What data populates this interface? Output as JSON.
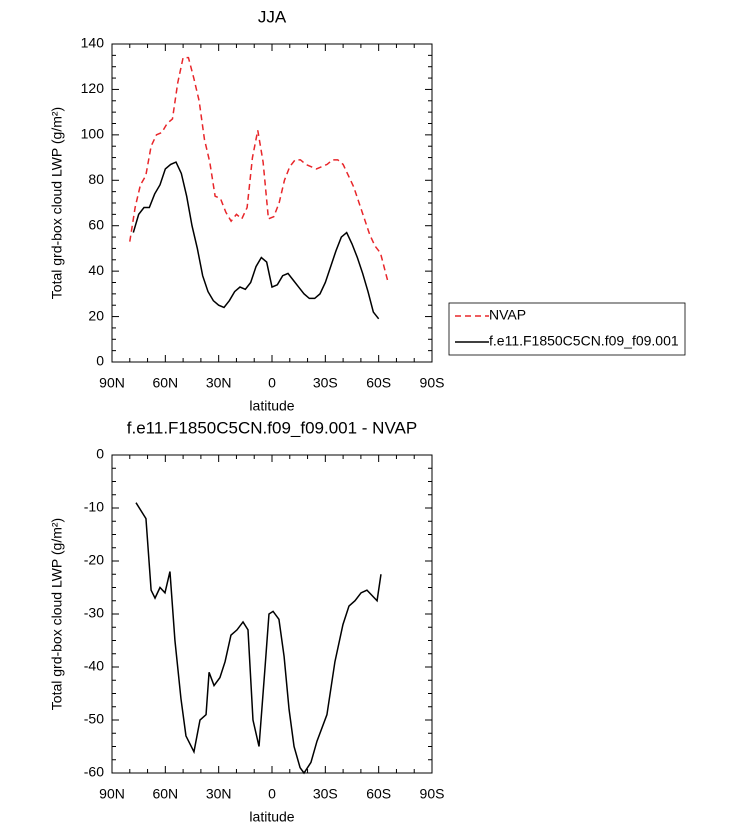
{
  "chart_data": [
    {
      "type": "line",
      "title": "JJA",
      "xlabel": "latitude",
      "ylabel": "Total grd-box cloud LWP (g/m²)",
      "xlim": [
        90,
        -90
      ],
      "xticks": [
        {
          "value": 90,
          "label": "90N"
        },
        {
          "value": 60,
          "label": "60N"
        },
        {
          "value": 30,
          "label": "30N"
        },
        0,
        {
          "value": -30,
          "label": "30S"
        },
        {
          "value": -60,
          "label": "60S"
        },
        {
          "value": -90,
          "label": "90S"
        }
      ],
      "ylim": [
        0,
        140
      ],
      "yticks": [
        0,
        20,
        40,
        60,
        80,
        100,
        120,
        140
      ],
      "legend": "right",
      "series": [
        {
          "name": "NVAP",
          "color": "#e8262a",
          "line_style": "dashed",
          "x": [
            80,
            77,
            74,
            71,
            68,
            65,
            62,
            59,
            56,
            53,
            50,
            47,
            44,
            41,
            38,
            35,
            32,
            29,
            26,
            23,
            20,
            17,
            14,
            11,
            8,
            5,
            2,
            -1,
            -4,
            -7,
            -10,
            -13,
            -16,
            -19,
            -22,
            -25,
            -28,
            -31,
            -34,
            -37,
            -40,
            -43,
            -46,
            -49,
            -52,
            -55,
            -58,
            -61,
            -65
          ],
          "values": [
            53,
            68,
            78,
            82,
            95,
            100,
            101,
            105,
            107,
            123,
            134,
            134,
            125,
            115,
            98,
            88,
            73,
            72,
            66,
            62,
            65,
            63,
            68,
            90,
            102,
            88,
            63,
            64,
            70,
            80,
            86,
            89,
            89,
            87,
            86,
            85,
            86,
            87,
            89,
            89,
            87,
            82,
            77,
            70,
            63,
            56,
            51,
            48,
            36
          ]
        },
        {
          "name": "f.e11.F1850C5CN.f09_f09.001",
          "color": "#000000",
          "line_style": "solid",
          "x": [
            78,
            75,
            72,
            69,
            66,
            63,
            60,
            57,
            54,
            51,
            48,
            45,
            42,
            39,
            36,
            33,
            30,
            27,
            24,
            21,
            18,
            15,
            12,
            9,
            6,
            3,
            0,
            -3,
            -6,
            -9,
            -12,
            -15,
            -18,
            -21,
            -24,
            -27,
            -30,
            -33,
            -36,
            -39,
            -42,
            -45,
            -48,
            -51,
            -54,
            -57,
            -60
          ],
          "values": [
            57,
            65,
            68,
            68,
            74,
            78,
            85,
            87,
            88,
            83,
            73,
            60,
            50,
            38,
            31,
            27,
            25,
            24,
            27,
            31,
            33,
            32,
            35,
            42,
            46,
            44,
            33,
            34,
            38,
            39,
            36,
            33,
            30,
            28,
            28,
            30,
            35,
            42,
            49,
            55,
            57,
            52,
            46,
            39,
            31,
            22,
            19
          ]
        }
      ]
    },
    {
      "type": "line",
      "title": "f.e11.F1850C5CN.f09_f09.001 - NVAP",
      "xlabel": "latitude",
      "ylabel": "Total grd-box cloud LWP (g/m²)",
      "xlim": [
        90,
        -90
      ],
      "xticks": [
        {
          "value": 90,
          "label": "90N"
        },
        {
          "value": 60,
          "label": "60N"
        },
        {
          "value": 30,
          "label": "30N"
        },
        0,
        {
          "value": -30,
          "label": "30S"
        },
        {
          "value": -60,
          "label": "60S"
        },
        {
          "value": -90,
          "label": "90S"
        }
      ],
      "ylim": [
        -60,
        0
      ],
      "yticks": [
        -60,
        -50,
        -40,
        -30,
        -20,
        -10,
        0
      ],
      "series": [
        {
          "color": "#000000",
          "line_style": "solid",
          "x": [
            76.5,
            70.9,
            68,
            65.8,
            63,
            60.2,
            57.4,
            54.6,
            51.2,
            48.4,
            43.9,
            40.5,
            37.1,
            35.4,
            32.6,
            29.3,
            26.4,
            23.1,
            19.7,
            16.3,
            13.5,
            10.7,
            7.3,
            3.9,
            1.7,
            -0.6,
            -3.9,
            -6.8,
            -9.6,
            -12.4,
            -15.8,
            -18,
            -21.9,
            -25.3,
            -30.9,
            -35.4,
            -39.9,
            -43.3,
            -46.7,
            -50.1,
            -53.4,
            -59.1,
            -61.3
          ],
          "values": [
            -9,
            -12,
            -25.5,
            -27,
            -25,
            -26,
            -22,
            -35,
            -46,
            -53,
            -56,
            -50,
            -49,
            -41,
            -43.5,
            -42,
            -39,
            -34,
            -33,
            -31.5,
            -33,
            -50,
            -55,
            -40,
            -30,
            -29.5,
            -31,
            -38,
            -48,
            -55,
            -59,
            -60,
            -58,
            -54,
            -49,
            -39,
            -32,
            -28.5,
            -27.5,
            -26,
            -25.5,
            -27.5,
            -22.5
          ]
        }
      ]
    }
  ]
}
